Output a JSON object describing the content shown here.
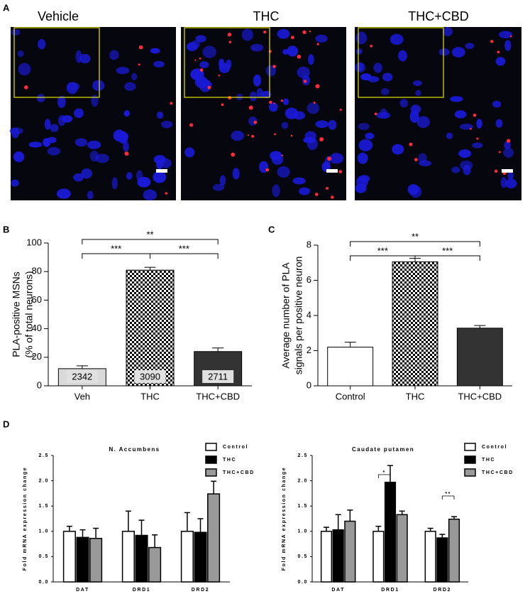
{
  "panel_labels": [
    "A",
    "B",
    "C",
    "D"
  ],
  "image_titles": [
    "Vehicle",
    "THC",
    "THC+CBD"
  ],
  "chart_data": [
    {
      "type": "bar",
      "ylabel": [
        "PLA-positive MSNs",
        "(% of total neurons)"
      ],
      "categories": [
        "Veh",
        "THC",
        "THC+CBD"
      ],
      "values": [
        12,
        81,
        24
      ],
      "errors": [
        2,
        2,
        2.5
      ],
      "colors": [
        "#d9d9d9",
        "checker",
        "#333333"
      ],
      "bar_labels": [
        2342,
        3090,
        2711
      ],
      "significance": [
        "***",
        "***",
        "**"
      ],
      "ylim": [
        0,
        100
      ],
      "yticks": [
        0,
        20,
        40,
        60,
        80,
        100
      ]
    },
    {
      "type": "bar",
      "ylabel": [
        "Average number of PLA",
        "signals per positive neuron"
      ],
      "categories": [
        "Control",
        "THC",
        "THC+CBD"
      ],
      "values": [
        2.2,
        7.05,
        3.28
      ],
      "errors": [
        0.28,
        0.2,
        0.15
      ],
      "colors": [
        "#ffffff",
        "checker",
        "#333333"
      ],
      "significance": [
        "***",
        "***",
        "**"
      ],
      "ylim": [
        0,
        8
      ],
      "yticks": [
        0,
        2,
        4,
        6,
        8
      ]
    },
    {
      "type": "grouped_bar",
      "title": "N. Accumbens",
      "ylabel": "Fold mRNA expression change",
      "categories": [
        "DAT",
        "DRD1",
        "DRD2"
      ],
      "series": [
        {
          "name": "Control",
          "color": "#ffffff",
          "values": [
            1.0,
            1.0,
            1.0
          ],
          "errors": [
            0.1,
            0.4,
            0.37
          ]
        },
        {
          "name": "THC",
          "color": "#000000",
          "values": [
            0.88,
            0.92,
            0.98
          ],
          "errors": [
            0.15,
            0.3,
            0.27
          ]
        },
        {
          "name": "THC+CBD",
          "color": "#999999",
          "values": [
            0.86,
            0.68,
            1.74
          ],
          "errors": [
            0.2,
            0.25,
            0.25
          ]
        }
      ],
      "ylim": [
        0,
        2.5
      ],
      "yticks": [
        {
          "value": 0,
          "label": "0.0"
        },
        {
          "value": 0.5,
          "label": "0.5"
        },
        {
          "value": 1,
          "label": "1.0"
        },
        {
          "value": 1.5,
          "label": "1.5"
        },
        {
          "value": 2,
          "label": "2.0"
        },
        {
          "value": 2.5,
          "label": "2.5"
        }
      ]
    },
    {
      "type": "grouped_bar",
      "title": "Caudate putamen",
      "ylabel": "Fold mRNA expression change",
      "categories": [
        "DAT",
        "DRD1",
        "DRD2"
      ],
      "series": [
        {
          "name": "Control",
          "color": "#ffffff",
          "values": [
            1.0,
            1.0,
            1.0
          ],
          "errors": [
            0.08,
            0.1,
            0.06
          ]
        },
        {
          "name": "THC",
          "color": "#000000",
          "values": [
            1.03,
            1.97,
            0.87
          ],
          "errors": [
            0.3,
            0.33,
            0.07
          ]
        },
        {
          "name": "THC+CBD",
          "color": "#999999",
          "values": [
            1.2,
            1.33,
            1.24
          ],
          "errors": [
            0.22,
            0.07,
            0.05
          ]
        }
      ],
      "significance": [
        "*",
        "**"
      ],
      "ylim": [
        0,
        2.5
      ],
      "yticks": [
        {
          "value": 0,
          "label": "0.0"
        },
        {
          "value": 0.5,
          "label": "0.5"
        },
        {
          "value": 1,
          "label": "1.0"
        },
        {
          "value": 1.5,
          "label": "1.5"
        },
        {
          "value": 2,
          "label": "2.0"
        },
        {
          "value": 2.5,
          "label": "2.5"
        }
      ]
    }
  ]
}
